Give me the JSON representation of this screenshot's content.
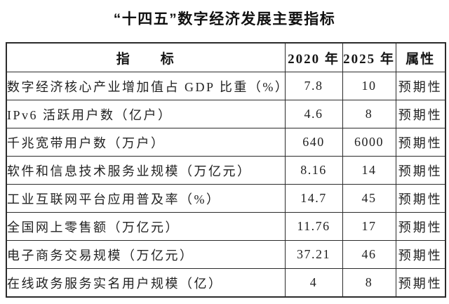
{
  "title": "“十四五”数字经济发展主要指标",
  "colors": {
    "background": "#ffffff",
    "text": "#1f1f1f",
    "border": "#2b2b2b"
  },
  "table": {
    "headers": {
      "indicator": "指　　标",
      "y2020": "2020 年",
      "y2025": "2025 年",
      "attribute": "属性"
    },
    "rows": [
      {
        "indicator": "数字经济核心产业增加值占 GDP 比重（%）",
        "v2020": "7.8",
        "v2025": "10",
        "attribute": "预期性"
      },
      {
        "indicator": "IPv6 活跃用户数（亿户）",
        "v2020": "4.6",
        "v2025": "8",
        "attribute": "预期性"
      },
      {
        "indicator": "千兆宽带用户数（万户）",
        "v2020": "640",
        "v2025": "6000",
        "attribute": "预期性"
      },
      {
        "indicator": "软件和信息技术服务业规模（万亿元）",
        "v2020": "8.16",
        "v2025": "14",
        "attribute": "预期性"
      },
      {
        "indicator": "工业互联网平台应用普及率（%）",
        "v2020": "14.7",
        "v2025": "45",
        "attribute": "预期性"
      },
      {
        "indicator": "全国网上零售额（万亿元）",
        "v2020": "11.76",
        "v2025": "17",
        "attribute": "预期性"
      },
      {
        "indicator": "电子商务交易规模（万亿元）",
        "v2020": "37.21",
        "v2025": "46",
        "attribute": "预期性"
      },
      {
        "indicator": "在线政务服务实名用户规模（亿）",
        "v2020": "4",
        "v2025": "8",
        "attribute": "预期性"
      }
    ]
  }
}
